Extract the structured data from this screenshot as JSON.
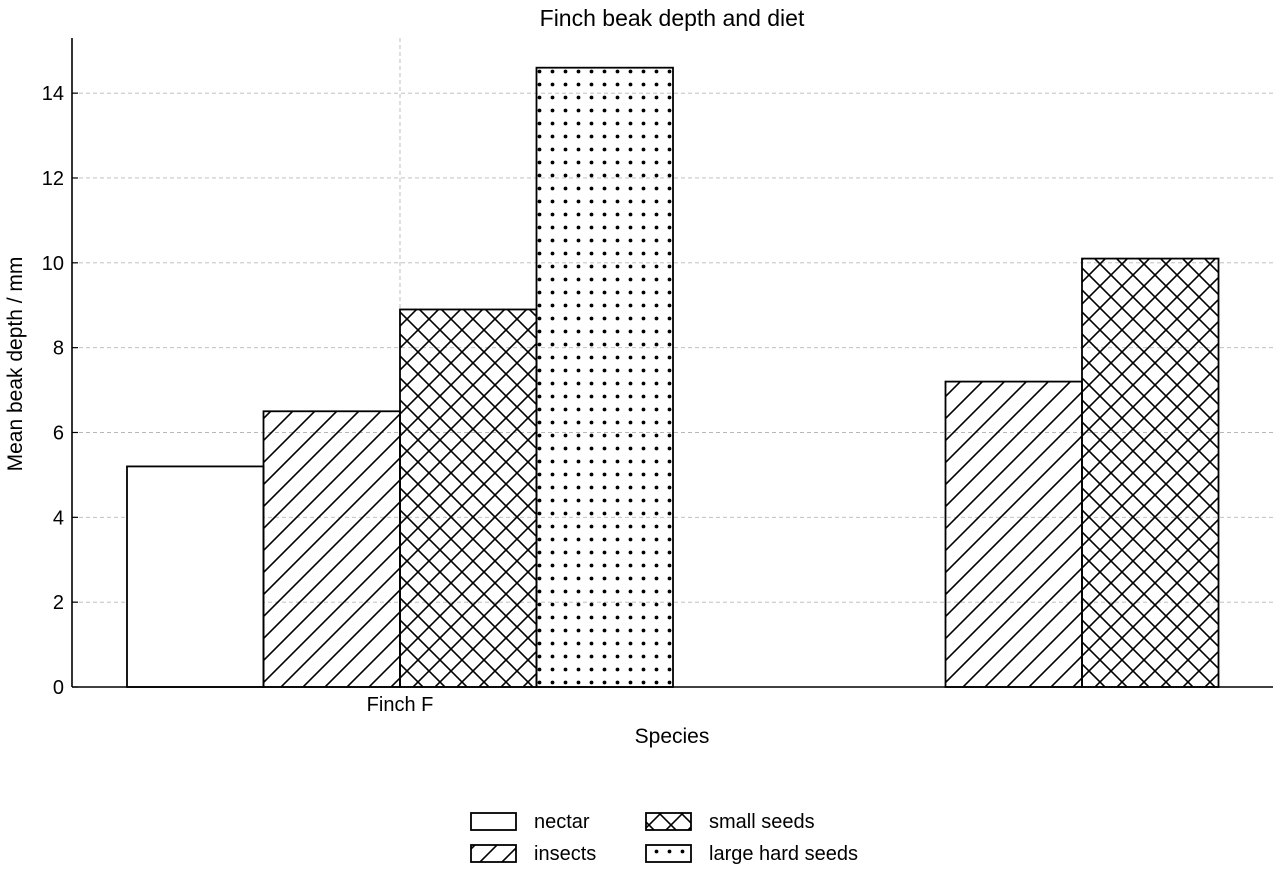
{
  "chart_data": {
    "type": "bar",
    "title": "Finch beak depth and diet",
    "xlabel": "Species",
    "ylabel": "Mean beak depth / mm",
    "ylim": [
      0,
      15.3
    ],
    "yticks": [
      0,
      2,
      4,
      6,
      8,
      10,
      12,
      14
    ],
    "grid": true,
    "legend_position": "bottom",
    "x_tick_labels": [
      {
        "group": 0,
        "label": "Finch F"
      }
    ],
    "groups": [
      {
        "bars": [
          {
            "series": "nectar",
            "value": 5.2
          },
          {
            "series": "insects",
            "value": 6.5
          },
          {
            "series": "small seeds",
            "value": 8.9
          },
          {
            "series": "large hard seeds",
            "value": 14.6
          }
        ]
      },
      {
        "bars": [
          {
            "series": "insects",
            "value": 7.2
          },
          {
            "series": "small seeds",
            "value": 10.1
          }
        ]
      }
    ],
    "series": [
      {
        "name": "nectar",
        "pattern": "none"
      },
      {
        "name": "insects",
        "pattern": "diagonal"
      },
      {
        "name": "small seeds",
        "pattern": "crosshatch"
      },
      {
        "name": "large hard seeds",
        "pattern": "dots"
      }
    ],
    "colors": {
      "bar_fill": "#ffffff",
      "bar_edge": "#000000",
      "grid": "#b8b8b8"
    }
  }
}
